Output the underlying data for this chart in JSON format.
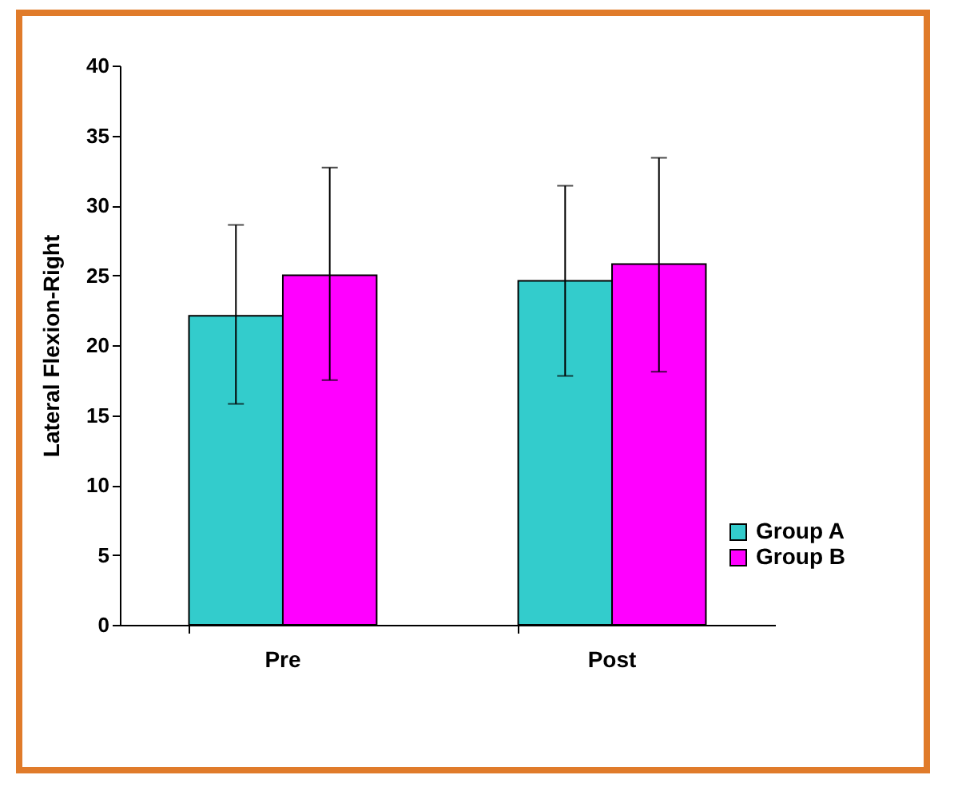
{
  "chart_data": {
    "type": "bar",
    "ylabel": "Lateral Flexion-Right",
    "categories": [
      "Pre",
      "Post"
    ],
    "series": [
      {
        "name": "Group A",
        "color": "#33cccc",
        "values": [
          22.1,
          24.6
        ],
        "errors": [
          [
            15.8,
            28.6
          ],
          [
            17.8,
            31.4
          ]
        ]
      },
      {
        "name": "Group B",
        "color": "#ff00ff",
        "values": [
          25.0,
          25.8
        ],
        "errors": [
          [
            17.5,
            32.7
          ],
          [
            18.1,
            33.4
          ]
        ]
      }
    ],
    "ylim": [
      0,
      40
    ],
    "yticks": [
      0,
      5,
      10,
      15,
      20,
      25,
      30,
      35,
      40
    ],
    "grid": false,
    "legend": "bottom right"
  }
}
